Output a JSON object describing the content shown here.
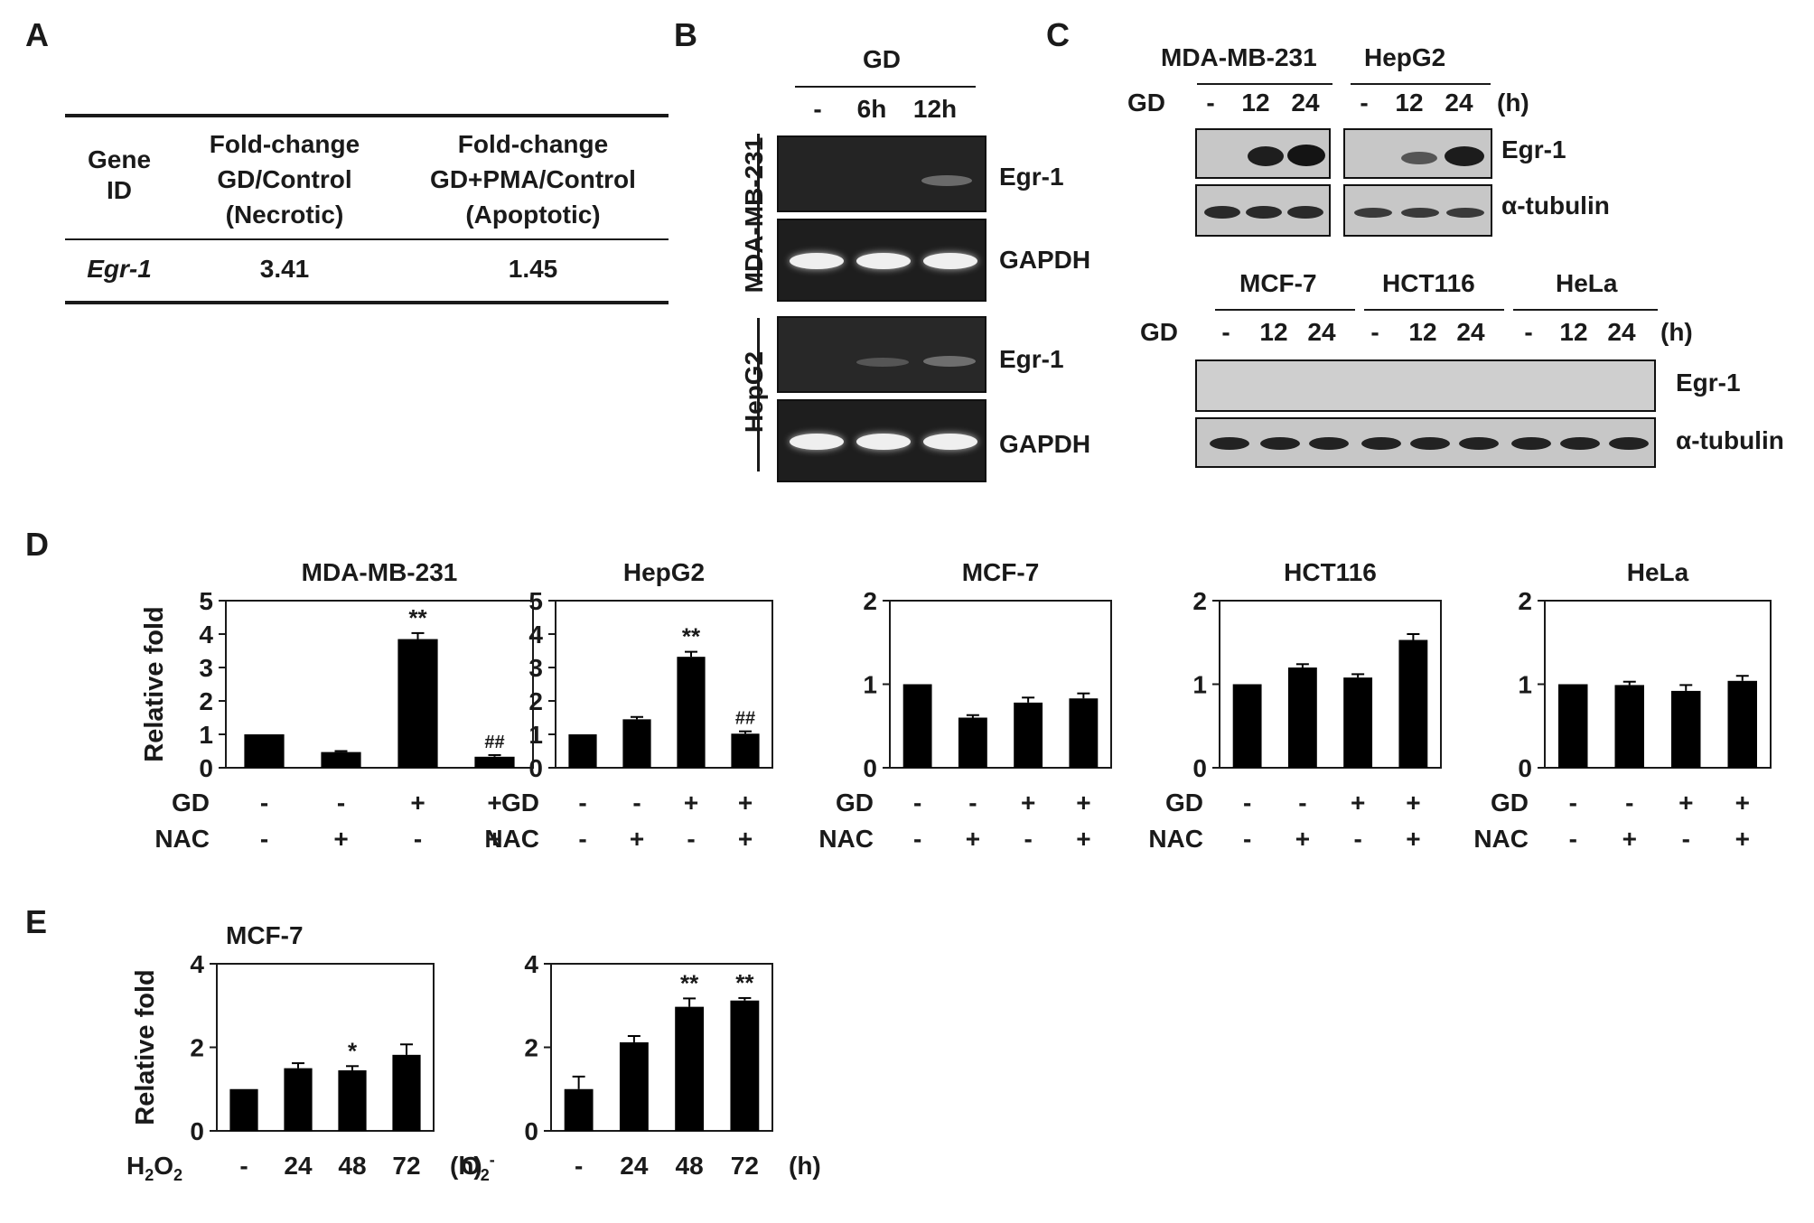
{
  "panel_labels": {
    "A": "A",
    "B": "B",
    "C": "C",
    "D": "D",
    "E": "E"
  },
  "table": {
    "headers": [
      "Gene\nID",
      "Fold-change\nGD/Control\n(Necrotic)",
      "Fold-change\nGD+PMA/Control\n(Apoptotic)"
    ],
    "rows": [
      [
        "Egr-1",
        "3.41",
        "1.45"
      ]
    ]
  },
  "panel_b": {
    "treatment": "GD",
    "lanes": [
      "-",
      "6h",
      "12h"
    ],
    "cell_lines": [
      "MDA-MB-231",
      "HepG2"
    ],
    "targets": [
      "Egr-1",
      "GAPDH"
    ]
  },
  "panel_c": {
    "treatment_label": "GD",
    "unit": "(h)",
    "top": {
      "groups": [
        "MDA-MB-231",
        "HepG2"
      ],
      "lanes": [
        "-",
        "12",
        "24"
      ],
      "targets": [
        "Egr-1",
        "α-tubulin"
      ]
    },
    "bottom": {
      "groups": [
        "MCF-7",
        "HCT116",
        "HeLa"
      ],
      "lanes": [
        "-",
        "12",
        "24"
      ],
      "targets": [
        "Egr-1",
        "α-tubulin"
      ]
    }
  },
  "chart_data": [
    {
      "panel": "D",
      "type": "bar",
      "title": "MDA-MB-231",
      "ylabel": "Relative fold",
      "ylim": [
        0,
        5
      ],
      "yticks": [
        "0",
        "1",
        "2",
        "3",
        "4",
        "5"
      ],
      "conditions": {
        "GD": [
          "-",
          "-",
          "+",
          "+"
        ],
        "NAC": [
          "-",
          "+",
          "-",
          "+"
        ]
      },
      "values": [
        1.0,
        0.47,
        3.85,
        0.33
      ],
      "errors": [
        0,
        0.03,
        0.18,
        0.05
      ],
      "annotations": [
        "",
        "",
        "**",
        "##"
      ]
    },
    {
      "panel": "D",
      "type": "bar",
      "title": "HepG2",
      "ylim": [
        0,
        5
      ],
      "yticks": [
        "0",
        "1",
        "2",
        "3",
        "4",
        "5"
      ],
      "conditions": {
        "GD": [
          "-",
          "-",
          "+",
          "+"
        ],
        "NAC": [
          "-",
          "+",
          "-",
          "+"
        ]
      },
      "values": [
        1.0,
        1.45,
        3.32,
        1.02
      ],
      "errors": [
        0,
        0.07,
        0.15,
        0.07
      ],
      "annotations": [
        "",
        "",
        "**",
        "##"
      ]
    },
    {
      "panel": "D",
      "type": "bar",
      "title": "MCF-7",
      "ylim": [
        0,
        2
      ],
      "yticks": [
        "0",
        "1",
        "2"
      ],
      "conditions": {
        "GD": [
          "-",
          "-",
          "+",
          "+"
        ],
        "NAC": [
          "-",
          "+",
          "-",
          "+"
        ]
      },
      "values": [
        1.0,
        0.6,
        0.78,
        0.83
      ],
      "errors": [
        0,
        0.03,
        0.06,
        0.06
      ],
      "annotations": [
        "",
        "",
        "",
        ""
      ]
    },
    {
      "panel": "D",
      "type": "bar",
      "title": "HCT116",
      "ylim": [
        0,
        2
      ],
      "yticks": [
        "0",
        "1",
        "2"
      ],
      "conditions": {
        "GD": [
          "-",
          "-",
          "+",
          "+"
        ],
        "NAC": [
          "-",
          "+",
          "-",
          "+"
        ]
      },
      "values": [
        1.0,
        1.2,
        1.08,
        1.53
      ],
      "errors": [
        0,
        0.04,
        0.04,
        0.07
      ],
      "annotations": [
        "",
        "",
        "",
        ""
      ]
    },
    {
      "panel": "D",
      "type": "bar",
      "title": "HeLa",
      "ylim": [
        0,
        2
      ],
      "yticks": [
        "0",
        "1",
        "2"
      ],
      "conditions": {
        "GD": [
          "-",
          "-",
          "+",
          "+"
        ],
        "NAC": [
          "-",
          "+",
          "-",
          "+"
        ]
      },
      "values": [
        1.0,
        0.99,
        0.92,
        1.04
      ],
      "errors": [
        0,
        0.04,
        0.07,
        0.06
      ],
      "annotations": [
        "",
        "",
        "",
        ""
      ]
    },
    {
      "panel": "E",
      "type": "bar",
      "title": "MCF-7",
      "ylabel": "Relative fold",
      "ylim": [
        0,
        4
      ],
      "yticks": [
        "0",
        "2",
        "4"
      ],
      "treatment": "H2O2",
      "unit": "(h)",
      "categories": [
        "-",
        "24",
        "48",
        "72"
      ],
      "values": [
        1.0,
        1.5,
        1.45,
        1.82
      ],
      "errors": [
        0,
        0.12,
        0.1,
        0.25
      ],
      "annotations": [
        "",
        "",
        "*",
        ""
      ]
    },
    {
      "panel": "E",
      "type": "bar",
      "ylim": [
        0,
        4
      ],
      "yticks": [
        "0",
        "2",
        "4"
      ],
      "treatment": "O2-",
      "unit": "(h)",
      "categories": [
        "-",
        "24",
        "48",
        "72"
      ],
      "values": [
        1.0,
        2.12,
        2.97,
        3.12
      ],
      "errors": [
        0.3,
        0.15,
        0.2,
        0.06
      ],
      "annotations": [
        "",
        "",
        "**",
        "**"
      ]
    }
  ]
}
